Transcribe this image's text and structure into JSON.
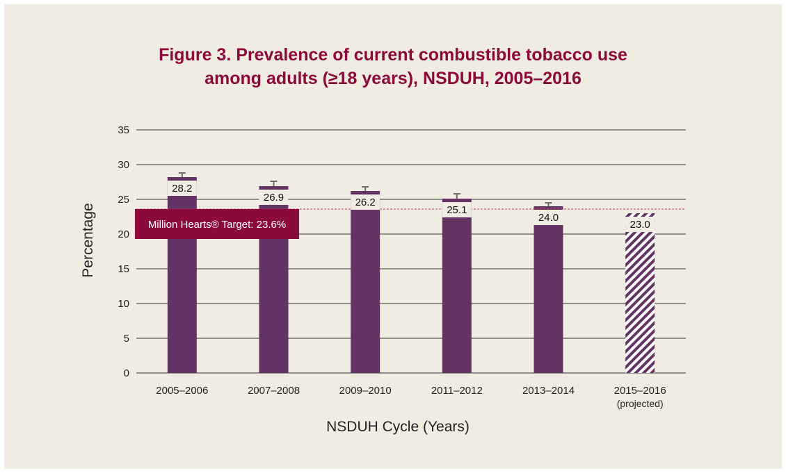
{
  "chart_data": {
    "type": "bar",
    "title_lines": [
      "Figure 3. Prevalence of current combustible tobacco use",
      "among adults (≥18 years), NSDUH, 2005–2016"
    ],
    "xlabel": "NSDUH Cycle (Years)",
    "ylabel": "Percentage",
    "ylim": [
      0,
      35
    ],
    "yticks": [
      0,
      5,
      10,
      15,
      20,
      25,
      30,
      35
    ],
    "grid": true,
    "categories": [
      {
        "label": "2005–2006",
        "sublabel": ""
      },
      {
        "label": "2007–2008",
        "sublabel": ""
      },
      {
        "label": "2009–2010",
        "sublabel": ""
      },
      {
        "label": "2011–2012",
        "sublabel": ""
      },
      {
        "label": "2013–2014",
        "sublabel": ""
      },
      {
        "label": "2015–2016",
        "sublabel": "(projected)"
      }
    ],
    "values": [
      28.2,
      26.9,
      26.2,
      25.1,
      24.0,
      23.0
    ],
    "value_labels": [
      "28.2",
      "26.9",
      "26.2",
      "25.1",
      "24.0",
      "23.0"
    ],
    "error_upper": [
      28.8,
      27.6,
      26.8,
      25.8,
      24.5,
      null
    ],
    "projected": [
      false,
      false,
      false,
      false,
      false,
      true
    ],
    "target": {
      "value": 23.6,
      "label": "Million Hearts® Target: 23.6%"
    },
    "colors": {
      "bar": "#633366",
      "projected_stripe": "#633366",
      "target_box": "#8b0a3b",
      "target_line": "#c0405f",
      "title": "#8b0a3b",
      "grid": "#5a5a5a",
      "background": "#f1ece1"
    }
  }
}
